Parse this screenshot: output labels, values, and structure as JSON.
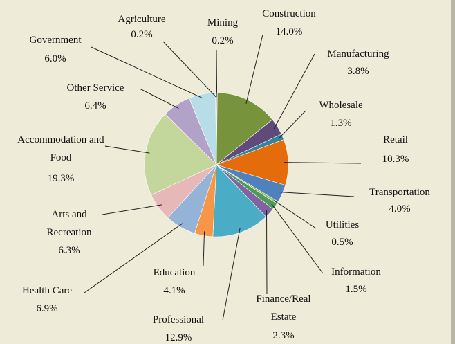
{
  "chart_data": {
    "type": "pie",
    "categories": [
      "Mining",
      "Construction",
      "Manufacturing",
      "Wholesale",
      "Retail",
      "Transportation",
      "Utilities",
      "Information",
      "Finance/Real Estate",
      "Professional",
      "Education",
      "Health Care",
      "Arts and Recreation",
      "Accommodation and Food",
      "Other Service",
      "Government",
      "Agriculture"
    ],
    "values": [
      0.2,
      14.0,
      3.8,
      1.3,
      10.3,
      4.0,
      0.5,
      1.5,
      2.3,
      12.9,
      4.1,
      6.9,
      6.3,
      19.3,
      6.4,
      6.0,
      0.2
    ],
    "value_labels": [
      "0.2%",
      "14.0%",
      "3.8%",
      "1.3%",
      "10.3%",
      "4.0%",
      "0.5%",
      "1.5%",
      "2.3%",
      "12.9%",
      "4.1%",
      "6.9%",
      "6.3%",
      "19.3%",
      "6.4%",
      "6.0%",
      "0.2%"
    ],
    "colors": [
      "#c0504d",
      "#77933c",
      "#604a7b",
      "#31859c",
      "#e46c0a",
      "#4f81bd",
      "#9bbb59",
      "#4f9a5a",
      "#8064a2",
      "#4bacc6",
      "#f79646",
      "#95b3d7",
      "#e6b9b8",
      "#c3d69b",
      "#b3a2c7",
      "#b7dee8",
      "#e6a0a0"
    ]
  }
}
